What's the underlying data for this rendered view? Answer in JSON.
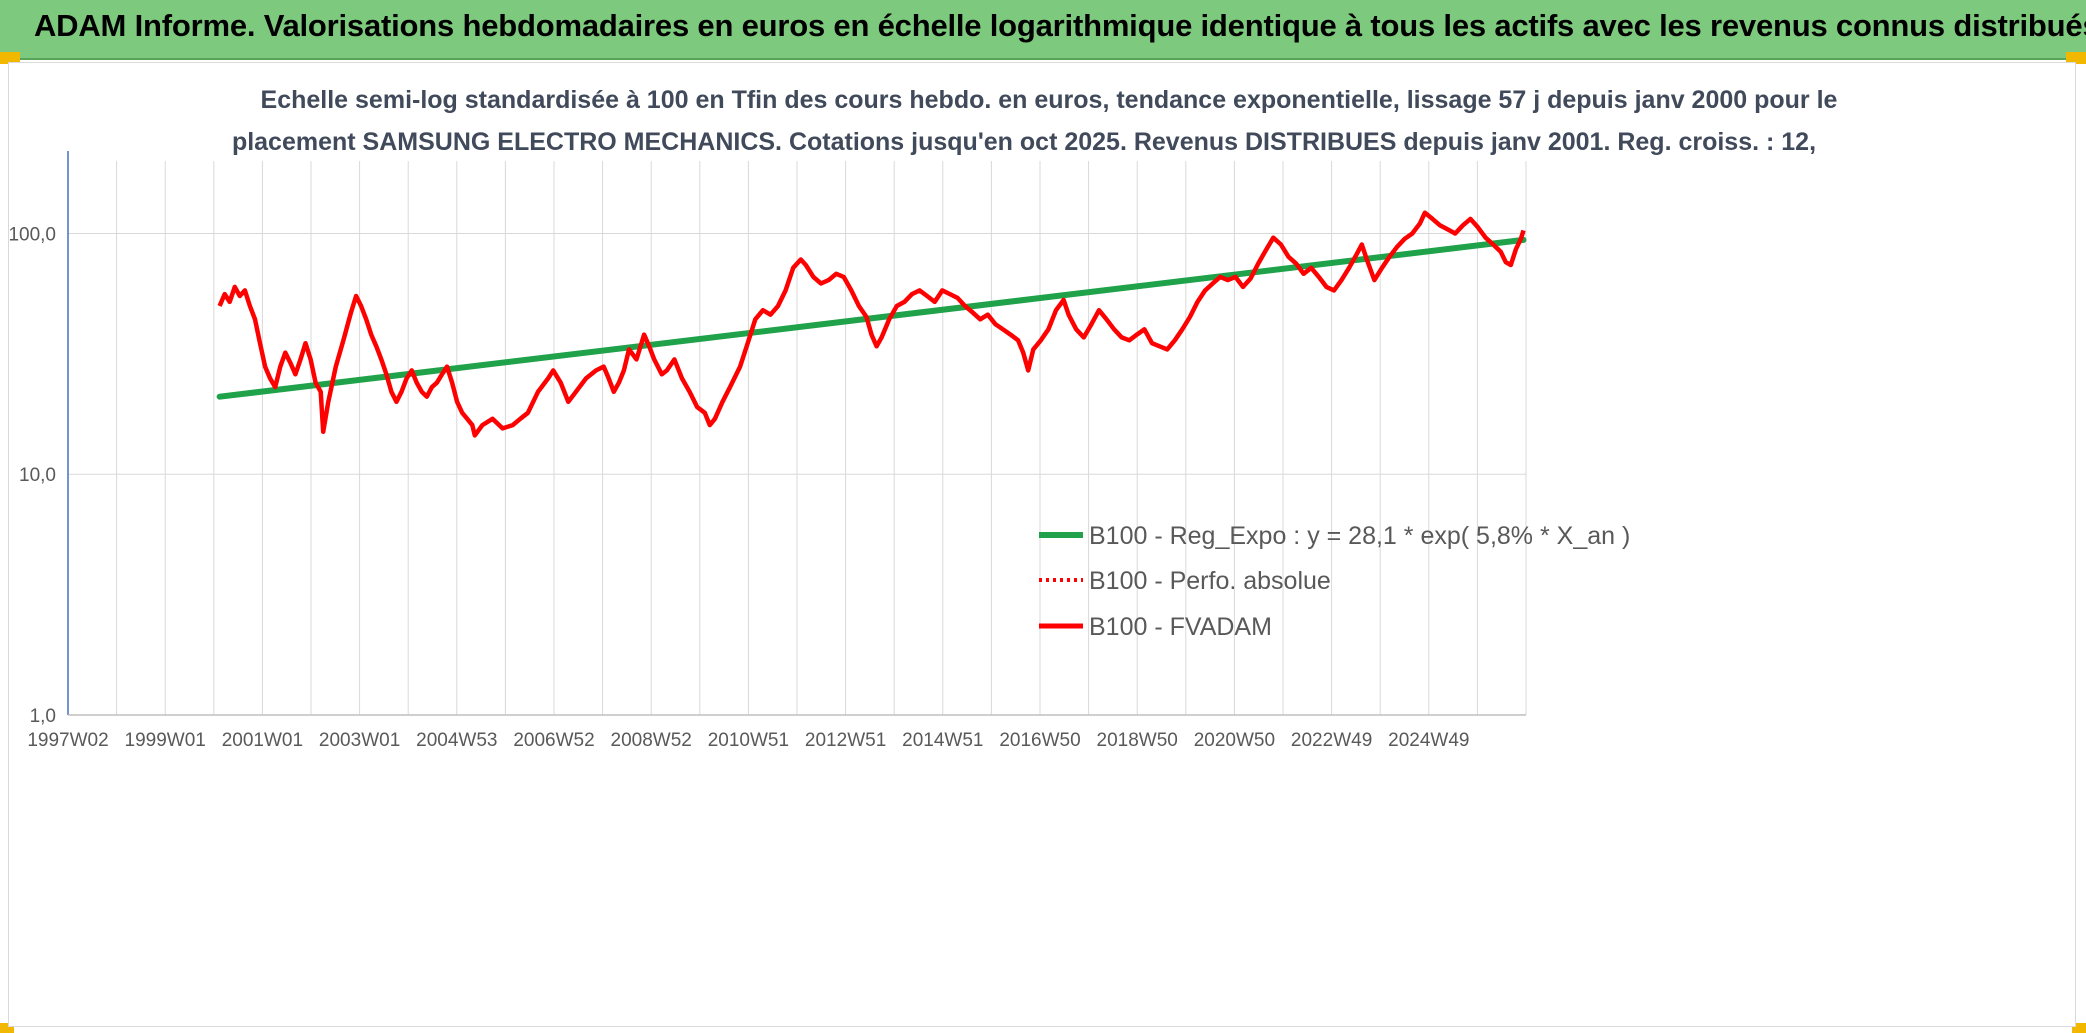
{
  "header": {
    "title": "ADAM Informe. Valorisations hebdomadaires en euros en échelle logarithmique identique à tous les actifs avec les revenus connus distribués"
  },
  "colors": {
    "banner": "#7dc97d",
    "corner": "#f2b800",
    "fvadam": "#ff0000",
    "reg_expo": "#1fa24a",
    "perfo": "#ff0000",
    "grid": "#d9d9d9",
    "axis": "#4472c4"
  },
  "chart_data": {
    "type": "line",
    "title": "Echelle semi-log standardisée à 100 en Tfin des cours hebdo. en euros, tendance exponentielle, lissage 57 j depuis janv 2000 pour le",
    "subtitle": "placement SAMSUNG ELECTRO MECHANICS. Cotations jusqu'en oct 2025. Revenus DISTRIBUES depuis janv 2001. Reg. croiss. : 12,",
    "y_scale": "log",
    "ylim": [
      1,
      200
    ],
    "y_ticks": [
      "1,0",
      "10,0",
      "100,0"
    ],
    "x_ticks": [
      "1997W02",
      "1999W01",
      "2001W01",
      "2003W01",
      "2004W53",
      "2006W52",
      "2008W52",
      "2010W51",
      "2012W51",
      "2014W51",
      "2016W50",
      "2018W50",
      "2020W50",
      "2022W49",
      "2024W49"
    ],
    "xlim": [
      1997.0,
      2025.85
    ],
    "grid": true,
    "legend_position": "right",
    "legend": [
      "B100 - Reg_Expo : y = 28,1 * exp( 5,8% *  X_an )",
      "B100 - Perfo. absolue",
      "B100 - FVADAM"
    ],
    "series": [
      {
        "name": "B100 - Reg_Expo : y = 28,1 * exp( 5,8% *  X_an )",
        "style": "thick-green",
        "points": [
          [
            2000.0,
            21.0
          ],
          [
            2025.8,
            94.0
          ]
        ]
      },
      {
        "name": "B100 - FVADAM",
        "style": "thick-red",
        "points": [
          [
            2000.0,
            50
          ],
          [
            2000.1,
            56
          ],
          [
            2000.2,
            52
          ],
          [
            2000.3,
            60
          ],
          [
            2000.4,
            55
          ],
          [
            2000.5,
            58
          ],
          [
            2000.6,
            50
          ],
          [
            2000.7,
            44
          ],
          [
            2000.8,
            35
          ],
          [
            2000.9,
            28
          ],
          [
            2001.0,
            25
          ],
          [
            2001.1,
            23
          ],
          [
            2001.2,
            28
          ],
          [
            2001.3,
            32
          ],
          [
            2001.4,
            29
          ],
          [
            2001.5,
            26
          ],
          [
            2001.6,
            30
          ],
          [
            2001.7,
            35
          ],
          [
            2001.8,
            30
          ],
          [
            2001.9,
            24
          ],
          [
            2002.0,
            22
          ],
          [
            2002.05,
            15
          ],
          [
            2002.15,
            20
          ],
          [
            2002.3,
            28
          ],
          [
            2002.45,
            36
          ],
          [
            2002.6,
            47
          ],
          [
            2002.7,
            55
          ],
          [
            2002.8,
            50
          ],
          [
            2002.9,
            44
          ],
          [
            2003.0,
            38
          ],
          [
            2003.1,
            34
          ],
          [
            2003.2,
            30
          ],
          [
            2003.3,
            26
          ],
          [
            2003.4,
            22
          ],
          [
            2003.5,
            20
          ],
          [
            2003.6,
            22
          ],
          [
            2003.7,
            25
          ],
          [
            2003.8,
            27
          ],
          [
            2003.9,
            24
          ],
          [
            2004.0,
            22
          ],
          [
            2004.1,
            21
          ],
          [
            2004.2,
            23
          ],
          [
            2004.3,
            24
          ],
          [
            2004.4,
            26
          ],
          [
            2004.5,
            28
          ],
          [
            2004.6,
            24
          ],
          [
            2004.7,
            20
          ],
          [
            2004.8,
            18
          ],
          [
            2004.9,
            17
          ],
          [
            2005.0,
            16
          ],
          [
            2005.05,
            14.5
          ],
          [
            2005.2,
            16
          ],
          [
            2005.4,
            17
          ],
          [
            2005.6,
            15.5
          ],
          [
            2005.8,
            16
          ],
          [
            2005.95,
            17
          ],
          [
            2006.1,
            18
          ],
          [
            2006.3,
            22
          ],
          [
            2006.5,
            25
          ],
          [
            2006.6,
            27
          ],
          [
            2006.75,
            24
          ],
          [
            2006.9,
            20
          ],
          [
            2007.05,
            22
          ],
          [
            2007.25,
            25
          ],
          [
            2007.45,
            27
          ],
          [
            2007.6,
            28
          ],
          [
            2007.7,
            25
          ],
          [
            2007.8,
            22
          ],
          [
            2007.9,
            24
          ],
          [
            2008.0,
            27
          ],
          [
            2008.1,
            33
          ],
          [
            2008.25,
            30
          ],
          [
            2008.4,
            38
          ],
          [
            2008.5,
            34
          ],
          [
            2008.6,
            30
          ],
          [
            2008.75,
            26
          ],
          [
            2008.85,
            27
          ],
          [
            2009.0,
            30
          ],
          [
            2009.15,
            25
          ],
          [
            2009.3,
            22
          ],
          [
            2009.45,
            19
          ],
          [
            2009.6,
            18
          ],
          [
            2009.7,
            16
          ],
          [
            2009.8,
            17
          ],
          [
            2009.95,
            20
          ],
          [
            2010.1,
            23
          ],
          [
            2010.3,
            28
          ],
          [
            2010.45,
            35
          ],
          [
            2010.6,
            44
          ],
          [
            2010.75,
            48
          ],
          [
            2010.9,
            46
          ],
          [
            2011.05,
            50
          ],
          [
            2011.2,
            58
          ],
          [
            2011.35,
            72
          ],
          [
            2011.5,
            78
          ],
          [
            2011.6,
            74
          ],
          [
            2011.75,
            66
          ],
          [
            2011.9,
            62
          ],
          [
            2012.05,
            64
          ],
          [
            2012.2,
            68
          ],
          [
            2012.35,
            66
          ],
          [
            2012.5,
            58
          ],
          [
            2012.65,
            50
          ],
          [
            2012.8,
            45
          ],
          [
            2012.9,
            38
          ],
          [
            2013.0,
            34
          ],
          [
            2013.1,
            37
          ],
          [
            2013.25,
            44
          ],
          [
            2013.4,
            50
          ],
          [
            2013.55,
            52
          ],
          [
            2013.7,
            56
          ],
          [
            2013.85,
            58
          ],
          [
            2014.0,
            55
          ],
          [
            2014.15,
            52
          ],
          [
            2014.3,
            58
          ],
          [
            2014.45,
            56
          ],
          [
            2014.6,
            54
          ],
          [
            2014.75,
            50
          ],
          [
            2014.9,
            47
          ],
          [
            2015.05,
            44
          ],
          [
            2015.2,
            46
          ],
          [
            2015.35,
            42
          ],
          [
            2015.5,
            40
          ],
          [
            2015.65,
            38
          ],
          [
            2015.8,
            36
          ],
          [
            2015.9,
            32
          ],
          [
            2016.0,
            27
          ],
          [
            2016.1,
            33
          ],
          [
            2016.25,
            36
          ],
          [
            2016.4,
            40
          ],
          [
            2016.55,
            48
          ],
          [
            2016.7,
            53
          ],
          [
            2016.8,
            46
          ],
          [
            2016.95,
            40
          ],
          [
            2017.1,
            37
          ],
          [
            2017.25,
            42
          ],
          [
            2017.4,
            48
          ],
          [
            2017.55,
            44
          ],
          [
            2017.7,
            40
          ],
          [
            2017.85,
            37
          ],
          [
            2018.0,
            36
          ],
          [
            2018.15,
            38
          ],
          [
            2018.3,
            40
          ],
          [
            2018.45,
            35
          ],
          [
            2018.6,
            34
          ],
          [
            2018.75,
            33
          ],
          [
            2018.9,
            36
          ],
          [
            2019.05,
            40
          ],
          [
            2019.2,
            45
          ],
          [
            2019.35,
            52
          ],
          [
            2019.5,
            58
          ],
          [
            2019.65,
            62
          ],
          [
            2019.8,
            66
          ],
          [
            2019.95,
            64
          ],
          [
            2020.1,
            66
          ],
          [
            2020.25,
            60
          ],
          [
            2020.4,
            65
          ],
          [
            2020.55,
            75
          ],
          [
            2020.7,
            85
          ],
          [
            2020.85,
            96
          ],
          [
            2021.0,
            90
          ],
          [
            2021.15,
            80
          ],
          [
            2021.3,
            75
          ],
          [
            2021.45,
            68
          ],
          [
            2021.6,
            72
          ],
          [
            2021.75,
            66
          ],
          [
            2021.9,
            60
          ],
          [
            2022.05,
            58
          ],
          [
            2022.2,
            64
          ],
          [
            2022.35,
            72
          ],
          [
            2022.5,
            82
          ],
          [
            2022.6,
            90
          ],
          [
            2022.7,
            78
          ],
          [
            2022.85,
            64
          ],
          [
            2023.0,
            72
          ],
          [
            2023.15,
            80
          ],
          [
            2023.3,
            88
          ],
          [
            2023.45,
            95
          ],
          [
            2023.6,
            100
          ],
          [
            2023.75,
            110
          ],
          [
            2023.85,
            122
          ],
          [
            2024.0,
            115
          ],
          [
            2024.15,
            108
          ],
          [
            2024.3,
            104
          ],
          [
            2024.45,
            100
          ],
          [
            2024.6,
            108
          ],
          [
            2024.75,
            115
          ],
          [
            2024.9,
            106
          ],
          [
            2025.05,
            96
          ],
          [
            2025.2,
            90
          ],
          [
            2025.35,
            84
          ],
          [
            2025.45,
            76
          ],
          [
            2025.55,
            74
          ],
          [
            2025.65,
            86
          ],
          [
            2025.75,
            95
          ],
          [
            2025.8,
            103
          ]
        ]
      }
    ]
  }
}
